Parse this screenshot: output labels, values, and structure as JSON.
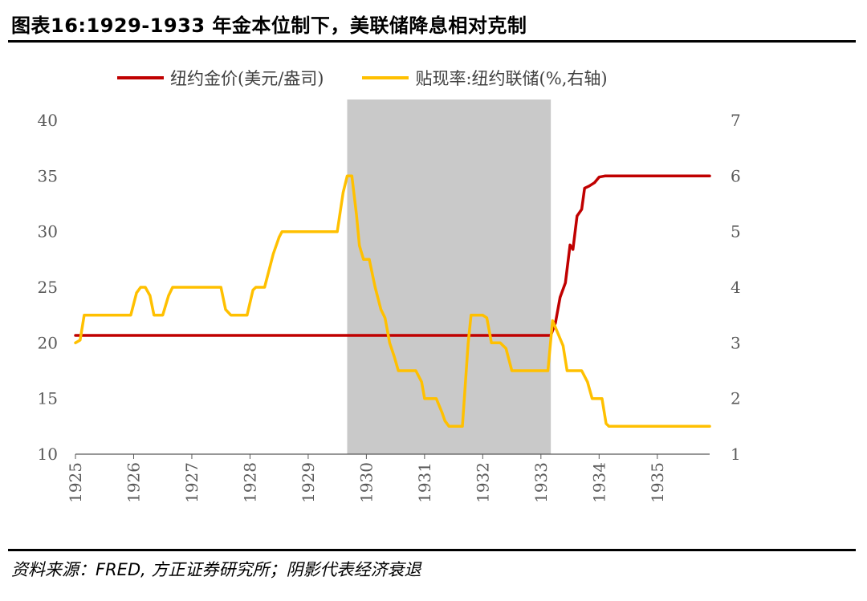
{
  "header": {
    "title": "图表16:1929-1933 年金本位制下，美联储降息相对克制"
  },
  "footer": {
    "source": "资料来源：FRED, 方正证券研究所；阴影代表经济衰退"
  },
  "chart_data": {
    "type": "line",
    "legend_position": "top",
    "grid": false,
    "x_ticks": [
      "1925",
      "1926",
      "1927",
      "1928",
      "1929",
      "1930",
      "1931",
      "1932",
      "1933",
      "1934",
      "1935"
    ],
    "xlim": [
      1925,
      1935.9
    ],
    "y_left": {
      "ticks": [
        "10",
        "15",
        "20",
        "25",
        "30",
        "35",
        "40"
      ],
      "lim": [
        10,
        40
      ]
    },
    "y_right": {
      "ticks": [
        "1",
        "2",
        "3",
        "4",
        "5",
        "6",
        "7"
      ],
      "lim": [
        1,
        7
      ]
    },
    "shaded_periods": [
      {
        "start": 1929.67,
        "end": 1933.17
      }
    ],
    "series": [
      {
        "name": "纽约金价(美元/盎司)",
        "axis": "left",
        "color": "#C00000",
        "points": [
          [
            1925.0,
            20.67
          ],
          [
            1933.17,
            20.67
          ],
          [
            1933.25,
            21.8
          ],
          [
            1933.33,
            24.1
          ],
          [
            1933.42,
            25.4
          ],
          [
            1933.5,
            28.8
          ],
          [
            1933.55,
            28.4
          ],
          [
            1933.62,
            31.4
          ],
          [
            1933.7,
            32.0
          ],
          [
            1933.75,
            33.9
          ],
          [
            1933.83,
            34.1
          ],
          [
            1933.92,
            34.4
          ],
          [
            1934.0,
            34.9
          ],
          [
            1934.1,
            35.0
          ],
          [
            1935.9,
            35.0
          ]
        ]
      },
      {
        "name": "贴现率:纽约联储(%,右轴)",
        "axis": "right",
        "color": "#FFC000",
        "points": [
          [
            1925.0,
            3.0
          ],
          [
            1925.08,
            3.05
          ],
          [
            1925.15,
            3.5
          ],
          [
            1925.95,
            3.5
          ],
          [
            1926.05,
            3.9
          ],
          [
            1926.12,
            4.0
          ],
          [
            1926.2,
            4.0
          ],
          [
            1926.28,
            3.85
          ],
          [
            1926.35,
            3.5
          ],
          [
            1926.5,
            3.5
          ],
          [
            1926.6,
            3.85
          ],
          [
            1926.67,
            4.0
          ],
          [
            1927.5,
            4.0
          ],
          [
            1927.58,
            3.6
          ],
          [
            1927.67,
            3.5
          ],
          [
            1927.95,
            3.5
          ],
          [
            1928.05,
            3.95
          ],
          [
            1928.1,
            4.0
          ],
          [
            1928.25,
            4.0
          ],
          [
            1928.4,
            4.6
          ],
          [
            1928.5,
            4.9
          ],
          [
            1928.55,
            5.0
          ],
          [
            1929.5,
            5.0
          ],
          [
            1929.6,
            5.7
          ],
          [
            1929.67,
            6.0
          ],
          [
            1929.75,
            6.0
          ],
          [
            1929.83,
            5.3
          ],
          [
            1929.88,
            4.75
          ],
          [
            1929.95,
            4.5
          ],
          [
            1930.05,
            4.5
          ],
          [
            1930.15,
            4.0
          ],
          [
            1930.25,
            3.6
          ],
          [
            1930.32,
            3.45
          ],
          [
            1930.4,
            3.0
          ],
          [
            1930.48,
            2.75
          ],
          [
            1930.55,
            2.5
          ],
          [
            1930.85,
            2.5
          ],
          [
            1930.95,
            2.3
          ],
          [
            1931.0,
            2.0
          ],
          [
            1931.2,
            2.0
          ],
          [
            1931.3,
            1.75
          ],
          [
            1931.35,
            1.6
          ],
          [
            1931.42,
            1.5
          ],
          [
            1931.65,
            1.5
          ],
          [
            1931.75,
            3.0
          ],
          [
            1931.8,
            3.5
          ],
          [
            1932.0,
            3.5
          ],
          [
            1932.07,
            3.45
          ],
          [
            1932.15,
            3.0
          ],
          [
            1932.3,
            3.0
          ],
          [
            1932.4,
            2.9
          ],
          [
            1932.5,
            2.5
          ],
          [
            1933.12,
            2.5
          ],
          [
            1933.2,
            3.4
          ],
          [
            1933.3,
            3.15
          ],
          [
            1933.38,
            2.95
          ],
          [
            1933.45,
            2.5
          ],
          [
            1933.7,
            2.5
          ],
          [
            1933.8,
            2.3
          ],
          [
            1933.88,
            2.0
          ],
          [
            1934.05,
            2.0
          ],
          [
            1934.12,
            1.55
          ],
          [
            1934.17,
            1.5
          ],
          [
            1935.9,
            1.5
          ]
        ]
      }
    ]
  }
}
